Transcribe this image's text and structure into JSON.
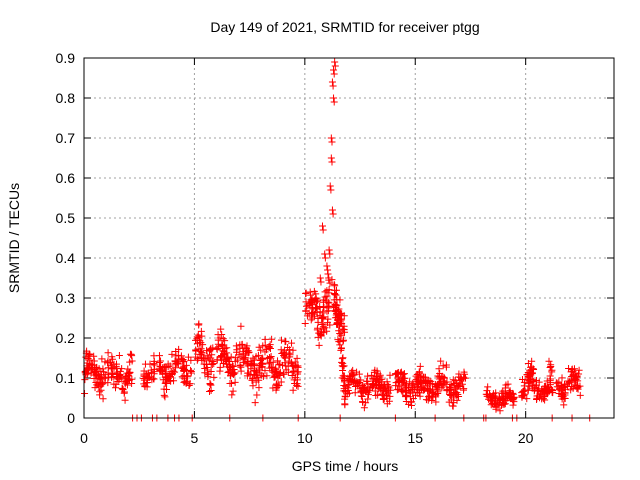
{
  "chart_data": {
    "type": "scatter",
    "title": "Day 149 of 2021, SRMTID for receiver ptgg",
    "xlabel": "GPS time / hours",
    "ylabel": "SRMTID / TECUs",
    "xlim": [
      0,
      24
    ],
    "ylim": [
      0,
      0.9
    ],
    "xticks": [
      0,
      5,
      10,
      15,
      20
    ],
    "yticks": [
      0,
      0.1,
      0.2,
      0.3,
      0.4,
      0.5,
      0.6,
      0.7,
      0.8,
      0.9
    ],
    "grid": true,
    "marker": "+",
    "marker_color": "#ff0000",
    "series": [
      {
        "name": "SRMTID",
        "segments": [
          {
            "x_start": 0.0,
            "x_end": 2.2,
            "level": 0.11,
            "spread": 0.04
          },
          {
            "x_start": 2.7,
            "x_end": 3.2,
            "level": 0.11,
            "spread": 0.03
          },
          {
            "x_start": 3.4,
            "x_end": 4.3,
            "level": 0.12,
            "spread": 0.035
          },
          {
            "x_start": 4.4,
            "x_end": 4.9,
            "level": 0.13,
            "spread": 0.03
          },
          {
            "x_start": 5.0,
            "x_end": 5.9,
            "level": 0.16,
            "spread": 0.05
          },
          {
            "x_start": 6.0,
            "x_end": 7.3,
            "level": 0.14,
            "spread": 0.05
          },
          {
            "x_start": 7.3,
            "x_end": 9.7,
            "level": 0.13,
            "spread": 0.045
          },
          {
            "x_start": 10.0,
            "x_end": 11.8,
            "level": 0.27,
            "spread": 0.05
          },
          {
            "x_start": 11.8,
            "x_end": 13.9,
            "level": 0.08,
            "spread": 0.03
          },
          {
            "x_start": 14.1,
            "x_end": 17.3,
            "level": 0.08,
            "spread": 0.03
          },
          {
            "x_start": 18.2,
            "x_end": 19.5,
            "level": 0.05,
            "spread": 0.02
          },
          {
            "x_start": 19.8,
            "x_end": 22.5,
            "level": 0.08,
            "spread": 0.035
          }
        ],
        "peak": {
          "x": [
            10.3,
            10.5,
            10.7,
            10.8,
            10.9,
            11.0,
            11.05,
            11.1,
            11.15,
            11.2,
            11.2,
            11.25,
            11.25,
            11.3,
            11.3,
            11.35
          ],
          "y": [
            0.26,
            0.3,
            0.35,
            0.48,
            0.41,
            0.38,
            0.36,
            0.42,
            0.58,
            0.65,
            0.7,
            0.52,
            0.84,
            0.8,
            0.87,
            0.89
          ]
        },
        "zero_markers": [
          2.2,
          2.4,
          2.6,
          3.1,
          3.3,
          3.8,
          4.1,
          4.3,
          4.9,
          6.6,
          8.1,
          9.7,
          11.6,
          14.1,
          15.9,
          17.2,
          18.1,
          18.2,
          19.4,
          19.6,
          21.2,
          22.1,
          22.9
        ]
      }
    ]
  }
}
